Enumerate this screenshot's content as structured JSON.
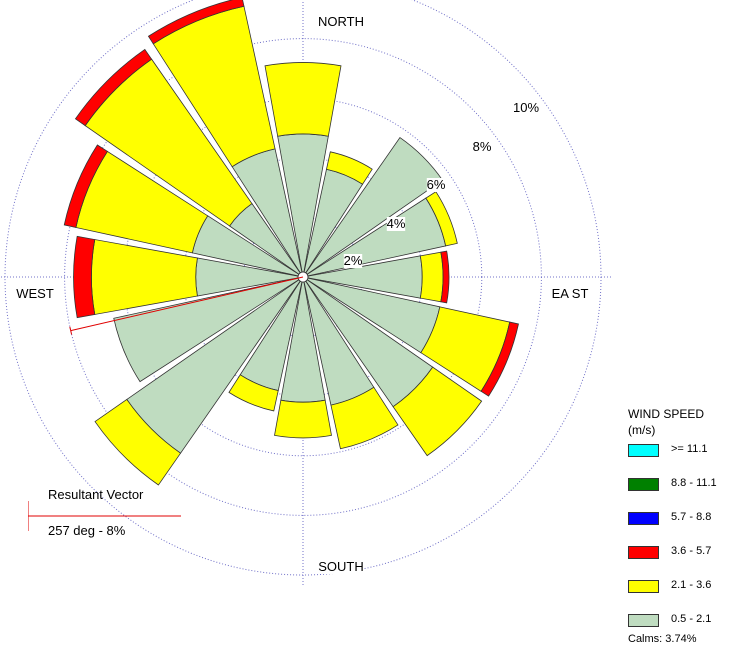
{
  "chart_data": {
    "type": "wind-rose",
    "directions_deg": [
      0,
      22.5,
      45,
      67.5,
      90,
      112.5,
      135,
      157.5,
      180,
      202.5,
      225,
      247.5,
      270,
      292.5,
      315,
      337.5
    ],
    "compass_labels": {
      "north": "NORTH",
      "east": "EA ST",
      "south": "SOUTH",
      "west": "WEST"
    },
    "radial_ticks": [
      {
        "value": 2,
        "label": "2%"
      },
      {
        "value": 4,
        "label": "4%"
      },
      {
        "value": 6,
        "label": "6%"
      },
      {
        "value": 8,
        "label": "8%"
      },
      {
        "value": 10,
        "label": "10%"
      }
    ],
    "speed_bins": [
      {
        "label": "0.5 - 2.1",
        "color": "#bfdcc0",
        "cumulative_percent": [
          4.8,
          3.7,
          5.7,
          4.9,
          4.0,
          4.7,
          5.3,
          4.4,
          4.2,
          3.9,
          7.2,
          6.5,
          3.6,
          3.8,
          3.0,
          4.4
        ]
      },
      {
        "label": "2.1 - 3.6",
        "color": "#ffff00",
        "cumulative_percent": [
          7.2,
          4.3,
          4.6,
          5.3,
          4.7,
          7.1,
          7.3,
          5.9,
          5.4,
          4.6,
          8.5,
          5.9,
          7.1,
          7.8,
          8.9,
          9.3
        ]
      },
      {
        "label": "3.6 - 5.7",
        "color": "#ff0000",
        "cumulative_percent": [
          7.2,
          4.3,
          4.6,
          5.3,
          4.9,
          7.4,
          7.3,
          5.9,
          5.4,
          4.6,
          8.5,
          5.9,
          7.7,
          8.2,
          9.3,
          9.6
        ]
      },
      {
        "label": "5.7 - 8.8",
        "color": "#0000ff",
        "cumulative_percent": [
          7.2,
          4.3,
          4.6,
          5.3,
          4.9,
          7.4,
          7.3,
          5.9,
          5.4,
          4.6,
          8.5,
          5.9,
          7.7,
          8.2,
          9.3,
          9.6
        ]
      },
      {
        "label": "8.8 - 11.1",
        "color": "#008000",
        "cumulative_percent": [
          7.2,
          4.3,
          4.6,
          5.3,
          4.9,
          7.4,
          7.3,
          5.9,
          5.4,
          4.6,
          8.5,
          5.9,
          7.7,
          8.2,
          9.3,
          9.6
        ]
      },
      {
        "label": ">= 11.1",
        "color": "#00ffff",
        "cumulative_percent": [
          7.2,
          4.3,
          4.6,
          5.3,
          4.9,
          7.4,
          7.3,
          5.9,
          5.4,
          4.6,
          8.5,
          5.9,
          7.7,
          8.2,
          9.3,
          9.6
        ]
      }
    ],
    "resultant_vector": {
      "direction_deg": 257,
      "percent": 8
    },
    "legend": {
      "title_line1": "WIND SPEED",
      "title_line2": "(m/s)",
      "placement": "bottom-right"
    },
    "calms_label": "Calms: 3.74%",
    "resultant_label": "Resultant Vector",
    "resultant_value": "257 deg - 8%"
  }
}
